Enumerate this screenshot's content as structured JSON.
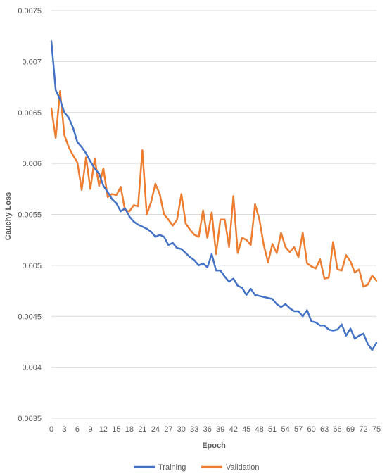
{
  "chart_data": {
    "type": "line",
    "title": "",
    "xlabel": "Epoch",
    "ylabel": "Cauchy Loss",
    "ylim": [
      0.0035,
      0.0075
    ],
    "yticks": [
      "0.0035",
      "0.004",
      "0.0045",
      "0.005",
      "0.0055",
      "0.006",
      "0.0065",
      "0.007",
      "0.0075"
    ],
    "xticks": [
      "0",
      "3",
      "6",
      "9",
      "12",
      "15",
      "18",
      "21",
      "24",
      "27",
      "30",
      "33",
      "36",
      "39",
      "42",
      "45",
      "48",
      "51",
      "54",
      "57",
      "60",
      "63",
      "66",
      "69",
      "72",
      "75"
    ],
    "grid": true,
    "legend_position": "bottom",
    "series": [
      {
        "name": "Training",
        "color": "#4472c4",
        "values": [
          0.0072,
          0.00672,
          0.00663,
          0.0065,
          0.00645,
          0.00635,
          0.00621,
          0.00616,
          0.0061,
          0.00602,
          0.00595,
          0.0059,
          0.00578,
          0.00572,
          0.00565,
          0.00561,
          0.00553,
          0.00556,
          0.00548,
          0.00543,
          0.0054,
          0.00538,
          0.00536,
          0.00533,
          0.00528,
          0.0053,
          0.00528,
          0.0052,
          0.00522,
          0.00517,
          0.00516,
          0.00512,
          0.00508,
          0.00505,
          0.005,
          0.00502,
          0.00498,
          0.00511,
          0.00495,
          0.00495,
          0.00489,
          0.00484,
          0.00487,
          0.0048,
          0.00478,
          0.00471,
          0.00477,
          0.00471,
          0.0047,
          0.00469,
          0.00468,
          0.00467,
          0.00462,
          0.00459,
          0.00462,
          0.00458,
          0.00455,
          0.00455,
          0.0045,
          0.00456,
          0.00445,
          0.00444,
          0.00441,
          0.00441,
          0.00437,
          0.00436,
          0.00437,
          0.00442,
          0.00431,
          0.00438,
          0.00428,
          0.00431,
          0.00433,
          0.00423,
          0.00417,
          0.00424
        ]
      },
      {
        "name": "Validation",
        "color": "#ed7d31",
        "values": [
          0.00654,
          0.00625,
          0.00671,
          0.00628,
          0.00616,
          0.00608,
          0.00601,
          0.00574,
          0.00606,
          0.00575,
          0.00605,
          0.00578,
          0.00595,
          0.00567,
          0.0057,
          0.00569,
          0.00577,
          0.00554,
          0.00553,
          0.00559,
          0.00558,
          0.00613,
          0.0055,
          0.00562,
          0.0058,
          0.0057,
          0.0055,
          0.00545,
          0.00539,
          0.00545,
          0.0057,
          0.00541,
          0.00535,
          0.0053,
          0.00528,
          0.00554,
          0.00527,
          0.00552,
          0.00511,
          0.00545,
          0.00545,
          0.00518,
          0.00568,
          0.00512,
          0.00527,
          0.00525,
          0.0052,
          0.0056,
          0.00545,
          0.0052,
          0.00503,
          0.00521,
          0.00512,
          0.00532,
          0.00518,
          0.00513,
          0.00518,
          0.00508,
          0.00532,
          0.00502,
          0.00499,
          0.00497,
          0.00506,
          0.00487,
          0.00488,
          0.00523,
          0.00496,
          0.00495,
          0.0051,
          0.00504,
          0.00493,
          0.00496,
          0.00479,
          0.00481,
          0.0049,
          0.00485
        ]
      }
    ]
  }
}
